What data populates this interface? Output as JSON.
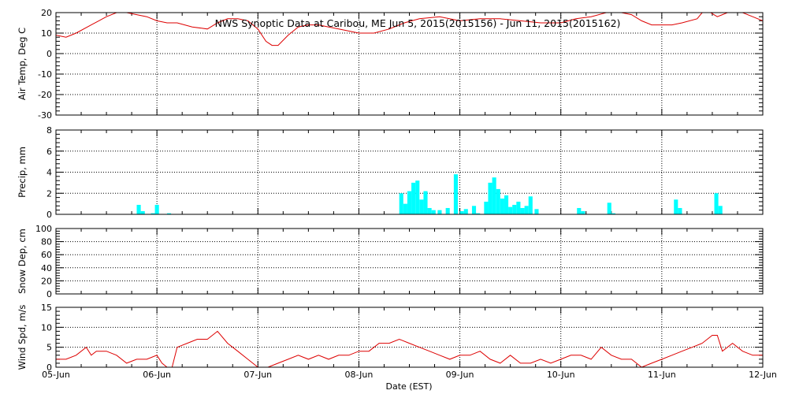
{
  "title": "NWS Synoptic Data at Caribou, ME   Jun  5, 2015(2015156) - Jun 11, 2015(2015162)",
  "xlabel": "Date (EST)",
  "x_ticks": [
    "05-Jun",
    "06-Jun",
    "07-Jun",
    "08-Jun",
    "09-Jun",
    "10-Jun",
    "11-Jun",
    "12-Jun"
  ],
  "colors": {
    "line": "#dd0000",
    "bar": "#00ffff",
    "axis": "#000000",
    "grid": "#000000"
  },
  "chart_data": [
    {
      "type": "line",
      "ylabel": "Air Temp, Deg C",
      "ylim": [
        -30,
        20
      ],
      "yticks": [
        -30,
        -20,
        -10,
        0,
        10,
        20
      ],
      "grid": true,
      "x_unit": "days since 05-Jun 00:00 EST",
      "x": [
        0,
        0.1,
        0.2,
        0.35,
        0.5,
        0.6,
        0.7,
        0.8,
        0.9,
        1.0,
        1.1,
        1.2,
        1.35,
        1.5,
        1.6,
        1.7,
        1.8,
        1.9,
        2.0,
        2.08,
        2.14,
        2.2,
        2.3,
        2.4,
        2.5,
        2.6,
        2.7,
        2.8,
        2.9,
        3.0,
        3.15,
        3.3,
        3.45,
        3.6,
        3.8,
        4.0,
        4.2,
        4.4,
        4.6,
        4.8,
        5.0,
        5.15,
        5.3,
        5.45,
        5.6,
        5.7,
        5.8,
        5.9,
        6.0,
        6.1,
        6.2,
        6.35,
        6.4,
        6.45,
        6.55,
        6.6,
        6.7,
        6.8,
        6.9,
        7.0
      ],
      "y": [
        9,
        8,
        10,
        14,
        18,
        20,
        20,
        19,
        18,
        16,
        15,
        15,
        13,
        12,
        15,
        17,
        17,
        16,
        12,
        6,
        4,
        4,
        9,
        13,
        14,
        14,
        13,
        12,
        11,
        10,
        10,
        12,
        15,
        17,
        18,
        16,
        17,
        17,
        16,
        15,
        15,
        17,
        18,
        20,
        20,
        19,
        16,
        14,
        14,
        14,
        15,
        17,
        20,
        21,
        18,
        19,
        21,
        20,
        18,
        16
      ]
    },
    {
      "type": "bar",
      "ylabel": "Precip, mm",
      "ylim": [
        0,
        8
      ],
      "yticks": [
        0,
        2,
        4,
        6,
        8
      ],
      "grid": true,
      "x_unit": "days since 05-Jun 00:00 EST",
      "bar_width_days": 0.04,
      "x": [
        0.82,
        0.86,
        0.96,
        1.0,
        1.12,
        3.42,
        3.46,
        3.5,
        3.54,
        3.58,
        3.62,
        3.66,
        3.7,
        3.74,
        3.8,
        3.88,
        3.96,
        4.02,
        4.06,
        4.14,
        4.18,
        4.26,
        4.3,
        4.34,
        4.38,
        4.42,
        4.46,
        4.5,
        4.54,
        4.58,
        4.62,
        4.66,
        4.7,
        4.76,
        5.18,
        5.22,
        5.48,
        5.52,
        6.14,
        6.18,
        6.54,
        6.58
      ],
      "values": [
        0.9,
        0.3,
        0.1,
        0.9,
        0.1,
        2.0,
        1.0,
        2.2,
        3.0,
        3.2,
        1.4,
        2.2,
        0.6,
        0.4,
        0.4,
        0.6,
        3.8,
        0.3,
        0.5,
        0.8,
        0.1,
        1.2,
        3.0,
        3.5,
        2.4,
        1.5,
        1.8,
        0.7,
        0.9,
        1.2,
        0.6,
        0.8,
        1.7,
        0.5,
        0.6,
        0.3,
        1.1,
        0.1,
        1.4,
        0.6,
        2.0,
        0.8
      ]
    },
    {
      "type": "line",
      "ylabel": "Snow Dep, cm",
      "ylim": [
        0,
        100
      ],
      "yticks": [
        0,
        20,
        40,
        60,
        80,
        100
      ],
      "grid": true,
      "x": [],
      "y": []
    },
    {
      "type": "line",
      "ylabel": "Wind Spd, m/s",
      "ylim": [
        0,
        15
      ],
      "yticks": [
        0,
        5,
        10,
        15
      ],
      "grid": true,
      "x_unit": "days since 05-Jun 00:00 EST",
      "x": [
        0,
        0.1,
        0.2,
        0.3,
        0.35,
        0.4,
        0.5,
        0.6,
        0.7,
        0.8,
        0.9,
        1.0,
        1.05,
        1.1,
        1.15,
        1.2,
        1.3,
        1.4,
        1.5,
        1.6,
        1.7,
        1.8,
        1.9,
        2.0,
        2.05,
        2.1,
        2.2,
        2.3,
        2.4,
        2.5,
        2.6,
        2.7,
        2.8,
        2.9,
        3.0,
        3.1,
        3.2,
        3.3,
        3.4,
        3.5,
        3.6,
        3.7,
        3.8,
        3.9,
        4.0,
        4.1,
        4.2,
        4.3,
        4.4,
        4.5,
        4.6,
        4.7,
        4.8,
        4.9,
        5.0,
        5.1,
        5.2,
        5.3,
        5.4,
        5.5,
        5.6,
        5.7,
        5.8,
        5.9,
        6.0,
        6.1,
        6.2,
        6.3,
        6.4,
        6.5,
        6.55,
        6.6,
        6.7,
        6.8,
        6.9,
        7.0
      ],
      "y": [
        2,
        2,
        3,
        5,
        3,
        4,
        4,
        3,
        1,
        2,
        2,
        3,
        1,
        0,
        0,
        5,
        6,
        7,
        7,
        9,
        6,
        4,
        2,
        0,
        0,
        0,
        1,
        2,
        3,
        2,
        3,
        2,
        3,
        3,
        4,
        4,
        6,
        6,
        7,
        6,
        5,
        4,
        3,
        2,
        3,
        3,
        4,
        2,
        1,
        3,
        1,
        1,
        2,
        1,
        2,
        3,
        3,
        2,
        5,
        3,
        2,
        2,
        0,
        1,
        2,
        3,
        4,
        5,
        6,
        8,
        8,
        4,
        6,
        4,
        3,
        3
      ]
    }
  ]
}
